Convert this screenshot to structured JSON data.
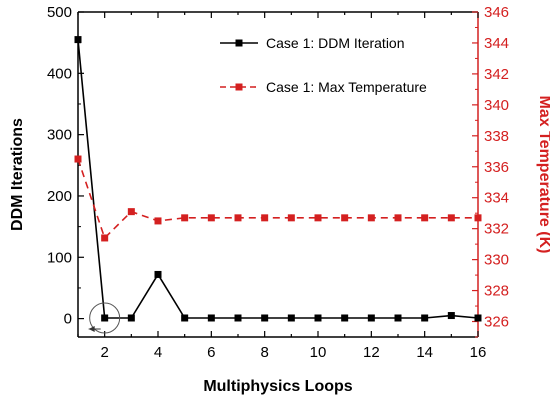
{
  "chart_data": {
    "type": "line",
    "title": "",
    "xlabel": "Multiphysics Loops",
    "ylabel_left": "DDM Iterations",
    "ylabel_right": "Max Temperature (K)",
    "xlim": [
      1,
      16
    ],
    "ylim_left": [
      -30,
      500
    ],
    "ylim_right": [
      325,
      346
    ],
    "x_ticks": [
      2,
      4,
      6,
      8,
      10,
      12,
      14,
      16
    ],
    "y_left_ticks": [
      0,
      100,
      200,
      300,
      400,
      500
    ],
    "y_right_ticks": [
      326,
      328,
      330,
      332,
      334,
      336,
      338,
      340,
      342,
      344,
      346
    ],
    "grid": false,
    "legend_position": "top-right",
    "x": [
      1,
      2,
      3,
      4,
      5,
      6,
      7,
      8,
      9,
      10,
      11,
      12,
      13,
      14,
      15,
      16
    ],
    "series": [
      {
        "name": "Case 1: DDM Iteration",
        "axis": "left",
        "style": "solid-square",
        "color": "#000000",
        "values": [
          455,
          1,
          1,
          72,
          1,
          1,
          1,
          1,
          1,
          1,
          1,
          1,
          1,
          1,
          5,
          1
        ]
      },
      {
        "name": "Case 1: Max Temperature",
        "axis": "right",
        "style": "dashed-square",
        "color": "#d42020",
        "values": [
          336.5,
          331.4,
          333.1,
          332.5,
          332.7,
          332.7,
          332.7,
          332.7,
          332.7,
          332.7,
          332.7,
          332.7,
          332.7,
          332.7,
          332.7,
          332.7
        ]
      }
    ],
    "annotations": [
      {
        "type": "circle",
        "x": 2,
        "y_left": 1,
        "note": ""
      },
      {
        "type": "arrow",
        "direction": "left",
        "x_from": 2,
        "x_to": 1.4,
        "y_left": -30
      }
    ]
  }
}
